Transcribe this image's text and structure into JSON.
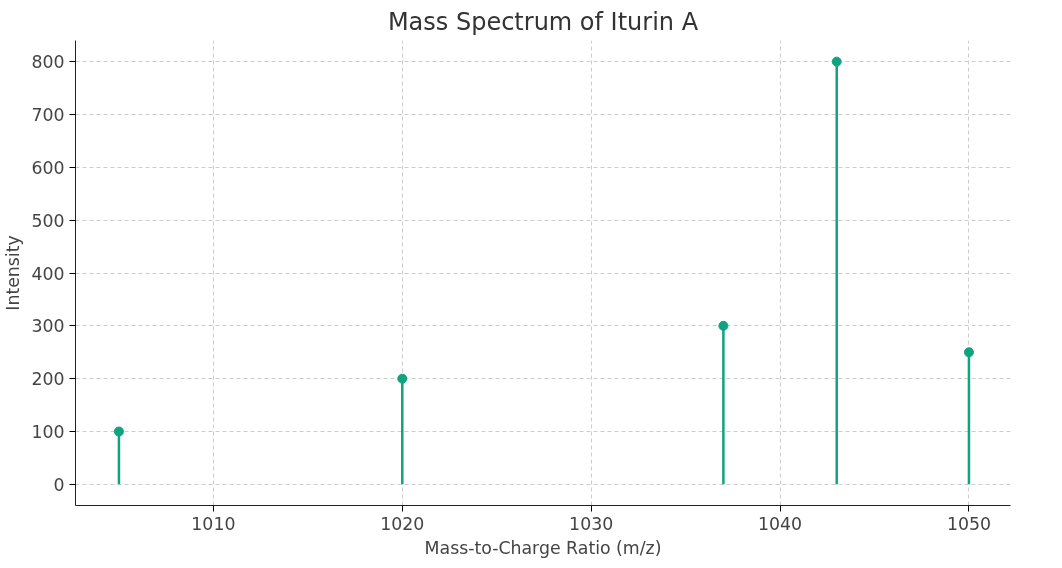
{
  "chart_data": {
    "type": "lollipop",
    "title": "Mass Spectrum of Iturin A",
    "xlabel": "Mass-to-Charge Ratio (m/z)",
    "ylabel": "Intensity",
    "x": [
      1005,
      1020,
      1037,
      1043,
      1050
    ],
    "values": [
      100,
      200,
      300,
      800,
      250
    ],
    "color": "#10a37f",
    "marker": "circle",
    "xlim": [
      1002.7,
      1052.2
    ],
    "ylim": [
      -40,
      840
    ],
    "xticks": [
      1010,
      1020,
      1030,
      1040,
      1050
    ],
    "yticks": [
      0,
      100,
      200,
      300,
      400,
      500,
      600,
      700,
      800
    ],
    "grid": true
  }
}
